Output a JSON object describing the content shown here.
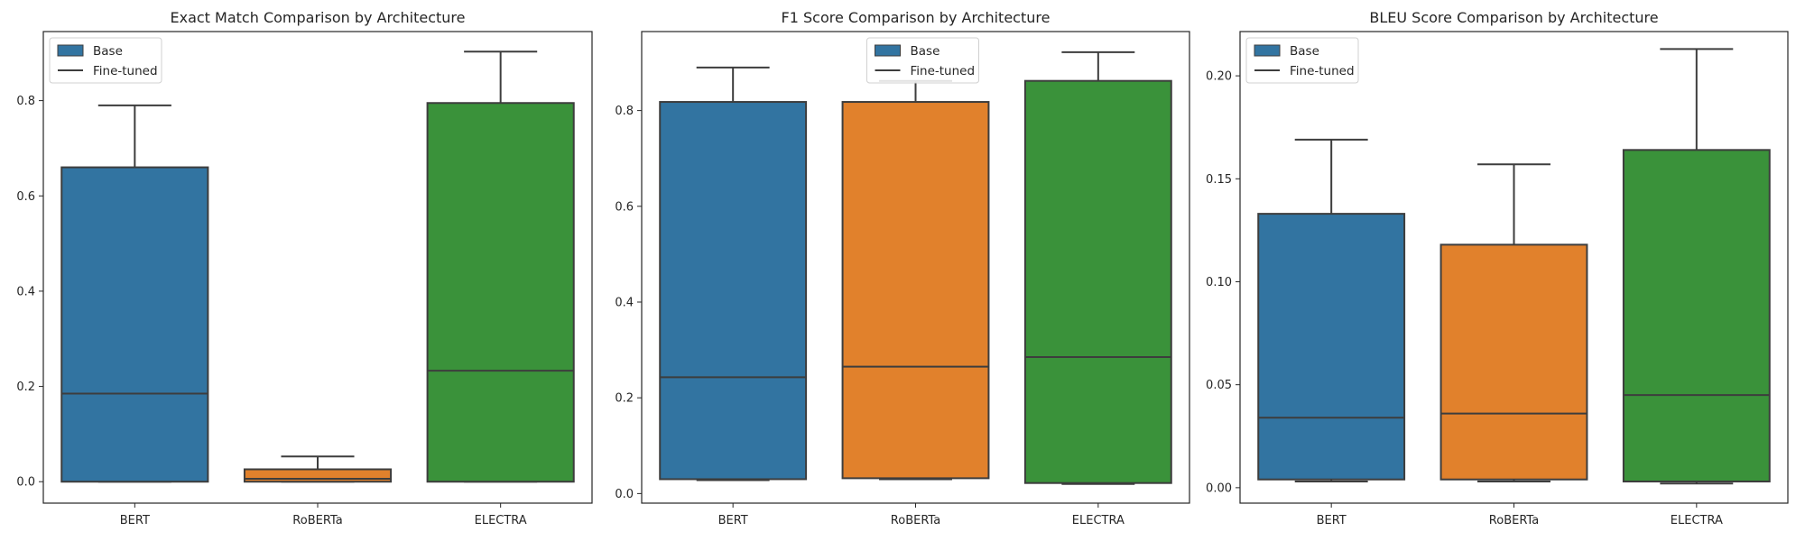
{
  "colors": {
    "BERT": "#3274a1",
    "RoBERTa": "#e1812c",
    "ELECTRA": "#3a923a",
    "line": "#3d3d3d",
    "axes": "#262626"
  },
  "chart_data": [
    {
      "type": "box",
      "title": "Exact Match Comparison by Architecture",
      "categories": [
        "BERT",
        "RoBERTa",
        "ELECTRA"
      ],
      "ylim": [
        -0.045,
        0.945
      ],
      "yticks": [
        0.0,
        0.2,
        0.4,
        0.6,
        0.8
      ],
      "ytick_labels": [
        "0.0",
        "0.2",
        "0.4",
        "0.6",
        "0.8"
      ],
      "legend": {
        "position": "upper left",
        "entries": [
          "Base",
          "Fine-tuned"
        ]
      },
      "boxes": [
        {
          "category": "BERT",
          "whislo": 0.0,
          "q1": 0.0,
          "med": 0.185,
          "q3": 0.66,
          "whishi": 0.79
        },
        {
          "category": "RoBERTa",
          "whislo": 0.0,
          "q1": 0.0,
          "med": 0.006,
          "q3": 0.026,
          "whishi": 0.053
        },
        {
          "category": "ELECTRA",
          "whislo": 0.0,
          "q1": 0.0,
          "med": 0.233,
          "q3": 0.795,
          "whishi": 0.903
        }
      ]
    },
    {
      "type": "box",
      "title": "F1 Score Comparison by Architecture",
      "categories": [
        "BERT",
        "RoBERTa",
        "ELECTRA"
      ],
      "ylim": [
        -0.02,
        0.965
      ],
      "yticks": [
        0.0,
        0.2,
        0.4,
        0.6,
        0.8
      ],
      "ytick_labels": [
        "0.0",
        "0.2",
        "0.4",
        "0.6",
        "0.8"
      ],
      "legend": {
        "position": "upper center",
        "entries": [
          "Base",
          "Fine-tuned"
        ]
      },
      "boxes": [
        {
          "category": "BERT",
          "whislo": 0.028,
          "q1": 0.03,
          "med": 0.243,
          "q3": 0.818,
          "whishi": 0.89
        },
        {
          "category": "RoBERTa",
          "whislo": 0.03,
          "q1": 0.032,
          "med": 0.265,
          "q3": 0.818,
          "whishi": 0.862
        },
        {
          "category": "ELECTRA",
          "whislo": 0.02,
          "q1": 0.022,
          "med": 0.285,
          "q3": 0.862,
          "whishi": 0.922
        }
      ]
    },
    {
      "type": "box",
      "title": "BLEU Score Comparison by Architecture",
      "categories": [
        "BERT",
        "RoBERTa",
        "ELECTRA"
      ],
      "ylim": [
        -0.0075,
        0.2215
      ],
      "yticks": [
        0.0,
        0.05,
        0.1,
        0.15,
        0.2
      ],
      "ytick_labels": [
        "0.00",
        "0.05",
        "0.10",
        "0.15",
        "0.20"
      ],
      "legend": {
        "position": "upper left",
        "entries": [
          "Base",
          "Fine-tuned"
        ]
      },
      "boxes": [
        {
          "category": "BERT",
          "whislo": 0.003,
          "q1": 0.004,
          "med": 0.034,
          "q3": 0.133,
          "whishi": 0.169
        },
        {
          "category": "RoBERTa",
          "whislo": 0.003,
          "q1": 0.004,
          "med": 0.036,
          "q3": 0.118,
          "whishi": 0.157
        },
        {
          "category": "ELECTRA",
          "whislo": 0.002,
          "q1": 0.003,
          "med": 0.045,
          "q3": 0.164,
          "whishi": 0.213
        }
      ]
    }
  ]
}
